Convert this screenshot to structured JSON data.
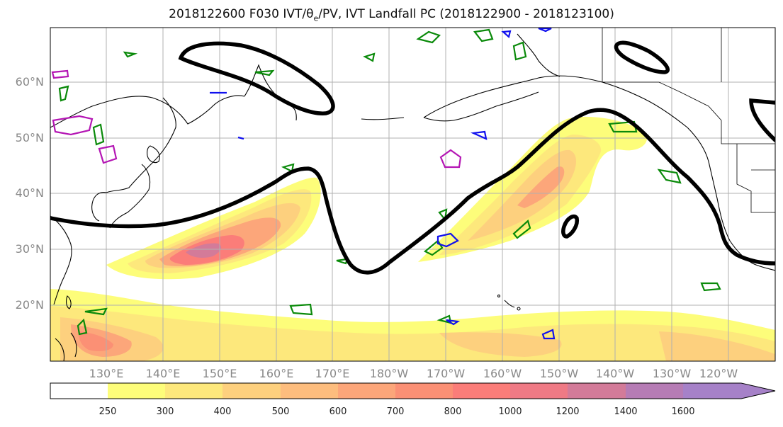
{
  "title": {
    "prefix": "2018122600 F030 IVT/θ",
    "sub": "e",
    "suffix": "/PV, IVT Landfall PC (2018122900 - 2018123100)"
  },
  "axes": {
    "lat_labels": [
      "60°N",
      "50°N",
      "40°N",
      "30°N",
      "20°N"
    ],
    "lon_labels": [
      "130°E",
      "140°E",
      "150°E",
      "160°E",
      "170°E",
      "180°W",
      "170°W",
      "160°W",
      "150°W",
      "140°W",
      "130°W",
      "120°W"
    ],
    "gridlines": true
  },
  "colorbar": {
    "levels": [
      "250",
      "300",
      "400",
      "500",
      "600",
      "700",
      "800",
      "1000",
      "1200",
      "1400",
      "1600"
    ],
    "colors": [
      "#ffffff",
      "#fdfd7a",
      "#fde87c",
      "#fdd07e",
      "#fdbd7e",
      "#fca67a",
      "#fb9075",
      "#fb7d79",
      "#ef7a85",
      "#d37b99",
      "#b67cb5",
      "#a681c8"
    ],
    "extend": "max"
  },
  "legend_colors": {
    "coast": "#000000",
    "pv_contour": "#000000",
    "theta_e_green": "#0a8a0a",
    "theta_e_blue": "#1010ee",
    "theta_e_magenta": "#b416b4"
  }
}
